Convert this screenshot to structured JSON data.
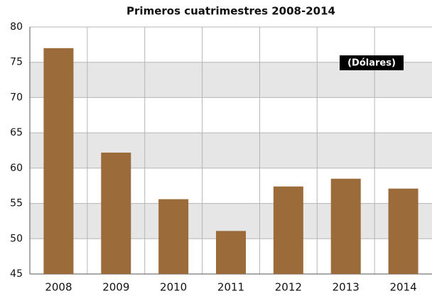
{
  "chart_data": {
    "type": "bar",
    "title": "Primeros cuatrimestres 2008-2014",
    "annotation": "(Dólares)",
    "categories": [
      "2008",
      "2009",
      "2010",
      "2011",
      "2012",
      "2013",
      "2014"
    ],
    "values": [
      77.0,
      62.2,
      55.6,
      51.1,
      57.4,
      58.5,
      57.1
    ],
    "color": "#9b6b3a",
    "ylim": [
      45,
      80
    ],
    "yticks": [
      45,
      50,
      55,
      60,
      65,
      70,
      75,
      80
    ],
    "grid": true
  }
}
